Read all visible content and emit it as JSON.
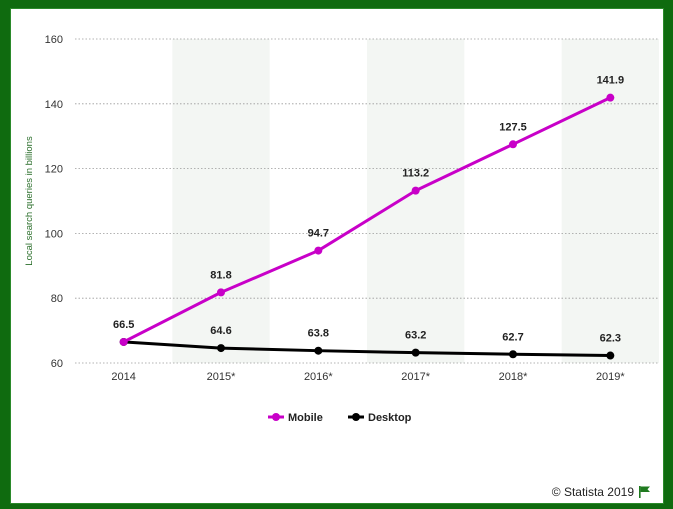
{
  "chart_data": {
    "type": "line",
    "categories": [
      "2014",
      "2015*",
      "2016*",
      "2017*",
      "2018*",
      "2019*"
    ],
    "series": [
      {
        "name": "Mobile",
        "values": [
          66.5,
          81.8,
          94.7,
          113.2,
          127.5,
          141.9
        ],
        "color": "#c800c8"
      },
      {
        "name": "Desktop",
        "values": [
          66.5,
          64.6,
          63.8,
          63.2,
          62.7,
          62.3
        ],
        "color": "#000000"
      }
    ],
    "labels": {
      "Mobile": [
        "66.5",
        "81.8",
        "94.7",
        "113.2",
        "127.5",
        "141.9"
      ],
      "Desktop": [
        "",
        "64.6",
        "63.8",
        "63.2",
        "62.7",
        "62.3"
      ]
    },
    "ylabel": "Local search queries in billions",
    "xlabel": "",
    "ylim": [
      60,
      160
    ],
    "yticks": [
      60,
      80,
      100,
      120,
      140,
      160
    ],
    "grid": true,
    "legend_position": "bottom-center",
    "band_color": "#f3f6f3"
  },
  "credit": "© Statista 2019",
  "colors": {
    "frame": "#0f6b0f",
    "flag": "#1f7a1f"
  }
}
